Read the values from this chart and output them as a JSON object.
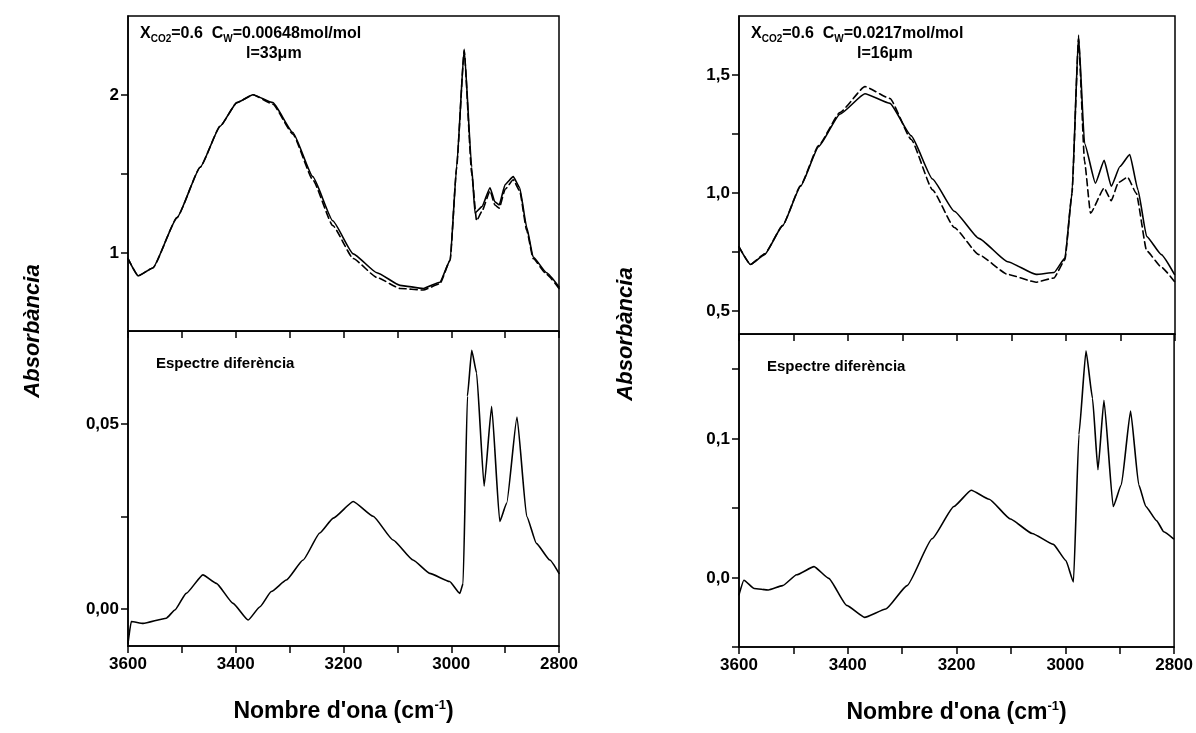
{
  "chart_data": [
    {
      "type": "line",
      "ylabel": "Absorbància",
      "annotations": [
        "X$_{CO2}$=0.6  C$_{W}$=0.00648mol/mol",
        "l=33μm"
      ],
      "xlim": [
        3600,
        2800
      ],
      "xticks": [
        3600,
        {
          "value": 3500,
          "label": null
        },
        3400,
        {
          "value": 3300,
          "label": null
        },
        3200,
        {
          "value": 3100,
          "label": null
        },
        3000,
        {
          "value": 2900,
          "label": null
        },
        2800
      ],
      "ylim": [
        0.5,
        2.5
      ],
      "yticks": [
        1,
        {
          "value": 1.5,
          "label": null
        },
        2
      ],
      "tick_labels": "y",
      "grid": false,
      "marker": "none",
      "series": [
        {
          "color": "#000000",
          "line_style": "solid",
          "x": [
            3600,
            3581,
            3554,
            3509,
            3466,
            3429,
            3398,
            3368,
            3331,
            3294,
            3257,
            3220,
            3182,
            3138,
            3095,
            3052,
            3021,
            3002,
            2990,
            2976,
            2962,
            2956,
            2943,
            2928,
            2919,
            2911,
            2900,
            2885,
            2873,
            2860,
            2848,
            2823,
            2800
          ],
          "values": [
            0.96,
            0.85,
            0.9,
            1.22,
            1.54,
            1.8,
            1.95,
            2.0,
            1.95,
            1.76,
            1.48,
            1.2,
            0.99,
            0.87,
            0.79,
            0.77,
            0.81,
            0.95,
            1.54,
            2.29,
            1.54,
            1.25,
            1.29,
            1.41,
            1.32,
            1.3,
            1.43,
            1.48,
            1.41,
            1.16,
            0.97,
            0.87,
            0.78
          ]
        },
        {
          "color": "#000000",
          "line_style": "dashed",
          "x": [
            3600,
            3581,
            3554,
            3509,
            3466,
            3429,
            3398,
            3368,
            3331,
            3294,
            3257,
            3220,
            3182,
            3138,
            3095,
            3052,
            3021,
            3002,
            2990,
            2976,
            2962,
            2953,
            2943,
            2928,
            2919,
            2911,
            2900,
            2885,
            2873,
            2860,
            2848,
            2823,
            2800
          ],
          "values": [
            0.96,
            0.85,
            0.9,
            1.22,
            1.54,
            1.8,
            1.95,
            2.0,
            1.94,
            1.75,
            1.46,
            1.17,
            0.96,
            0.84,
            0.77,
            0.76,
            0.8,
            0.95,
            1.54,
            2.28,
            1.5,
            1.2,
            1.26,
            1.39,
            1.3,
            1.28,
            1.4,
            1.46,
            1.39,
            1.14,
            0.96,
            0.86,
            0.77
          ]
        }
      ]
    },
    {
      "type": "line",
      "xlabel": "Nombre d'ona (cm$^{-1}$)",
      "annotations": [
        "Espectre diferència"
      ],
      "xlim": [
        3600,
        2800
      ],
      "xticks": [
        3600,
        {
          "value": 3500,
          "label": null
        },
        3400,
        {
          "value": 3300,
          "label": null
        },
        3200,
        {
          "value": 3100,
          "label": null
        },
        3000,
        {
          "value": 2900,
          "label": null
        },
        2800
      ],
      "ylim": [
        -0.01,
        0.075
      ],
      "yticks": [
        {
          "value": 0,
          "label": "0,00"
        },
        {
          "value": 0.025,
          "label": null
        },
        {
          "value": 0.05,
          "label": "0,05"
        }
      ],
      "grid": false,
      "marker": "none",
      "series": [
        {
          "color": "#000000",
          "line_style": "solid",
          "x": [
            3600,
            3594,
            3572,
            3529,
            3513,
            3492,
            3461,
            3436,
            3405,
            3377,
            3355,
            3334,
            3306,
            3275,
            3244,
            3219,
            3182,
            3145,
            3108,
            3071,
            3040,
            3003,
            2984,
            2978,
            2970,
            2962,
            2953,
            2939,
            2925,
            2910,
            2897,
            2878,
            2860,
            2842,
            2817,
            2800
          ],
          "values": [
            -0.0093,
            -0.0034,
            -0.0039,
            -0.0025,
            -0.0003,
            0.0042,
            0.0092,
            0.0069,
            0.0015,
            -0.003,
            0.0006,
            0.0047,
            0.0078,
            0.0132,
            0.0205,
            0.0245,
            0.029,
            0.025,
            0.0186,
            0.0132,
            0.0096,
            0.0074,
            0.0042,
            0.0069,
            0.0574,
            0.0698,
            0.0637,
            0.0331,
            0.0547,
            0.0236,
            0.0286,
            0.0518,
            0.025,
            0.0177,
            0.0132,
            0.0096
          ]
        }
      ]
    },
    {
      "type": "line",
      "ylabel": "Absorbància",
      "annotations": [
        "X$_{CO2}$=0.6  C$_{W}$=0.0217mol/mol",
        "l=16μm"
      ],
      "xlim": [
        3600,
        2800
      ],
      "xticks": [
        3600,
        {
          "value": 3500,
          "label": null
        },
        3400,
        {
          "value": 3300,
          "label": null
        },
        3200,
        {
          "value": 3100,
          "label": null
        },
        3000,
        {
          "value": 2900,
          "label": null
        },
        2800
      ],
      "ylim": [
        0.4,
        1.75
      ],
      "yticks": [
        {
          "value": 0.5,
          "label": "0,5"
        },
        {
          "value": 0.75,
          "label": null
        },
        {
          "value": 1,
          "label": "1,0"
        },
        {
          "value": 1.25,
          "label": null
        },
        {
          "value": 1.5,
          "label": "1,5"
        }
      ],
      "tick_labels": "y",
      "grid": false,
      "marker": "none",
      "series": [
        {
          "color": "#000000",
          "line_style": "solid",
          "x": [
            3600,
            3579,
            3553,
            3520,
            3487,
            3454,
            3415,
            3369,
            3323,
            3284,
            3245,
            3205,
            3160,
            3107,
            3055,
            3022,
            3002,
            2989,
            2977,
            2966,
            2946,
            2930,
            2917,
            2901,
            2883,
            2868,
            2852,
            2825,
            2801
          ],
          "values": [
            0.77,
            0.695,
            0.737,
            0.86,
            1.027,
            1.195,
            1.333,
            1.42,
            1.379,
            1.241,
            1.058,
            0.921,
            0.806,
            0.707,
            0.653,
            0.661,
            0.722,
            0.997,
            1.669,
            1.21,
            1.04,
            1.137,
            1.027,
            1.111,
            1.162,
            1.012,
            0.814,
            0.737,
            0.653
          ]
        },
        {
          "color": "#000000",
          "line_style": "dashed",
          "x": [
            3600,
            3579,
            3553,
            3520,
            3487,
            3454,
            3415,
            3369,
            3323,
            3284,
            3245,
            3205,
            3160,
            3107,
            3055,
            3022,
            3002,
            2989,
            2977,
            2966,
            2955,
            2930,
            2917,
            2904,
            2887,
            2871,
            2852,
            2825,
            2801
          ],
          "values": [
            0.77,
            0.695,
            0.74,
            0.86,
            1.03,
            1.2,
            1.34,
            1.45,
            1.4,
            1.226,
            1.012,
            0.852,
            0.737,
            0.653,
            0.62,
            0.638,
            0.715,
            0.997,
            1.653,
            1.134,
            0.913,
            1.02,
            0.966,
            1.043,
            1.066,
            0.997,
            0.753,
            0.684,
            0.623
          ]
        }
      ]
    },
    {
      "type": "line",
      "xlabel": "Nombre d'ona (cm$^{-1}$)",
      "annotations": [
        "Espectre diferència"
      ],
      "xlim": [
        3600,
        2800
      ],
      "xticks": [
        3600,
        {
          "value": 3500,
          "label": null
        },
        3400,
        {
          "value": 3300,
          "label": null
        },
        3200,
        {
          "value": 3100,
          "label": null
        },
        3000,
        {
          "value": 2900,
          "label": null
        },
        2800
      ],
      "ylim": [
        -0.05,
        0.175
      ],
      "yticks": [
        {
          "value": -0.05,
          "label": null
        },
        {
          "value": 0,
          "label": "0,0"
        },
        {
          "value": 0.05,
          "label": null
        },
        {
          "value": 0.1,
          "label": "0,1"
        },
        {
          "value": 0.15,
          "label": null
        }
      ],
      "grid": false,
      "marker": "none",
      "series": [
        {
          "color": "#000000",
          "line_style": "solid",
          "x": [
            3600,
            3591,
            3572,
            3546,
            3520,
            3494,
            3462,
            3435,
            3402,
            3369,
            3330,
            3291,
            3245,
            3205,
            3173,
            3140,
            3101,
            3061,
            3022,
            2999,
            2985,
            2975,
            2962,
            2950,
            2940,
            2929,
            2912,
            2897,
            2880,
            2865,
            2852,
            2832,
            2819,
            2801
          ],
          "values": [
            -0.0124,
            -0.002,
            -0.008,
            -0.009,
            -0.0059,
            0.0019,
            0.0078,
            -0.0007,
            -0.0201,
            -0.0287,
            -0.0227,
            -0.0059,
            0.0278,
            0.051,
            0.0627,
            0.0562,
            0.042,
            0.0316,
            0.0238,
            0.0122,
            -0.0033,
            0.1028,
            0.1629,
            0.1287,
            0.0774,
            0.1274,
            0.051,
            0.0666,
            0.1196,
            0.0666,
            0.051,
            0.0407,
            0.0329,
            0.0278
          ]
        }
      ]
    }
  ]
}
